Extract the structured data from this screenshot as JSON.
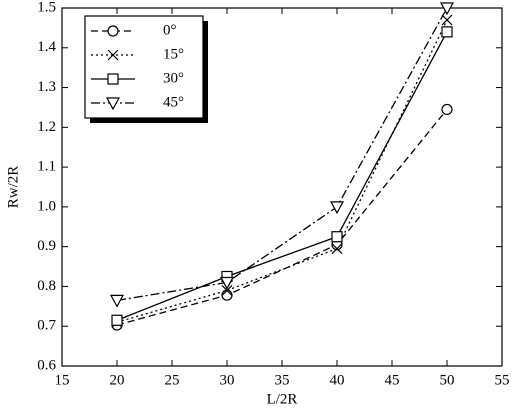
{
  "chart_data": {
    "type": "line",
    "x_label": "L/2R",
    "y_label": "Rw/2R",
    "x": [
      20,
      30,
      40,
      50
    ],
    "series": [
      {
        "name": "0°",
        "color": "#000000",
        "marker": "circle",
        "line_style": "dashed",
        "values": [
          0.703,
          0.778,
          0.905,
          1.245
        ]
      },
      {
        "name": "15°",
        "color": "#000000",
        "marker": "x",
        "line_style": "dotted",
        "values": [
          0.71,
          0.79,
          0.895,
          1.47
        ]
      },
      {
        "name": "30°",
        "color": "#000000",
        "marker": "square",
        "line_style": "solid",
        "values": [
          0.715,
          0.825,
          0.925,
          1.44
        ]
      },
      {
        "name": "45°",
        "color": "#000000",
        "marker": "triangle-down",
        "line_style": "dashdot",
        "values": [
          0.765,
          0.81,
          1.0,
          1.5
        ]
      }
    ],
    "xlim": [
      15,
      55
    ],
    "xticks": [
      15,
      20,
      25,
      30,
      35,
      40,
      45,
      50,
      55
    ],
    "ylim": [
      0.6,
      1.5
    ],
    "yticks": [
      0.6,
      0.7,
      0.8,
      0.9,
      {
        "value": 1,
        "label": "1.0"
      },
      1.1,
      1.2,
      1.3,
      1.4,
      1.5
    ],
    "legend": "upper-left",
    "grid": false
  }
}
